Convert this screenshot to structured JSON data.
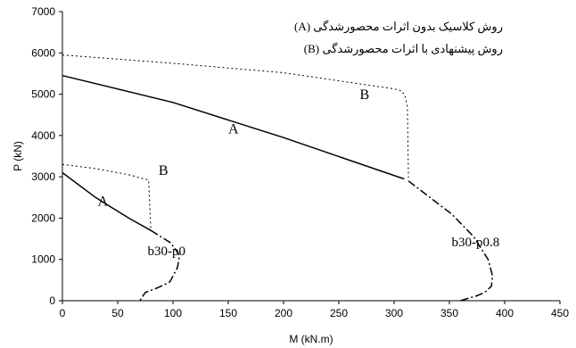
{
  "chart_data": {
    "type": "line",
    "xlabel": "M (kN.m)",
    "ylabel": "P (kN)",
    "xlim": [
      0,
      450
    ],
    "ylim": [
      0,
      7000
    ],
    "x_ticks": [
      "0",
      "50",
      "100",
      "150",
      "200",
      "250",
      "300",
      "350",
      "400",
      "450"
    ],
    "y_ticks": [
      "0",
      "1000",
      "2000",
      "3000",
      "4000",
      "5000",
      "6000",
      "7000"
    ],
    "legend": [
      {
        "key": "(A)",
        "text": "روش کلاسیک بدون اثرات محصورشدگی"
      },
      {
        "key": "(B)",
        "text": "روش پیشنهادی با اثرات محصورشدگی"
      }
    ],
    "series": [
      {
        "name": "b30-p0.8",
        "label": "b30-p0.8",
        "part_labels": {
          "A": "A",
          "B": "B"
        },
        "A": {
          "x": [
            0,
            100,
            200,
            309
          ],
          "y": [
            5450,
            4800,
            3950,
            2950
          ]
        },
        "B": {
          "x": [
            0,
            100,
            200,
            300,
            307,
            310,
            312,
            313
          ],
          "y": [
            5950,
            5750,
            5520,
            5130,
            5080,
            4950,
            4700,
            2980
          ]
        },
        "shared": {
          "x": [
            313,
            330,
            352,
            372,
            385,
            389,
            388,
            382,
            375,
            365,
            360
          ],
          "y": [
            2900,
            2550,
            2100,
            1550,
            1000,
            600,
            350,
            200,
            120,
            40,
            0
          ]
        }
      },
      {
        "name": "b30-p0",
        "label": "b30-p0",
        "part_labels": {
          "A": "A",
          "B": "B"
        },
        "A": {
          "x": [
            0,
            30,
            60,
            80
          ],
          "y": [
            3100,
            2500,
            2000,
            1700
          ]
        },
        "B": {
          "x": [
            0,
            30,
            60,
            78,
            80
          ],
          "y": [
            3300,
            3200,
            3050,
            2920,
            1700
          ]
        },
        "shared": {
          "x": [
            80,
            98,
            106,
            104,
            97,
            85,
            75,
            70
          ],
          "y": [
            1700,
            1400,
            1100,
            800,
            450,
            300,
            200,
            0
          ]
        }
      }
    ]
  }
}
